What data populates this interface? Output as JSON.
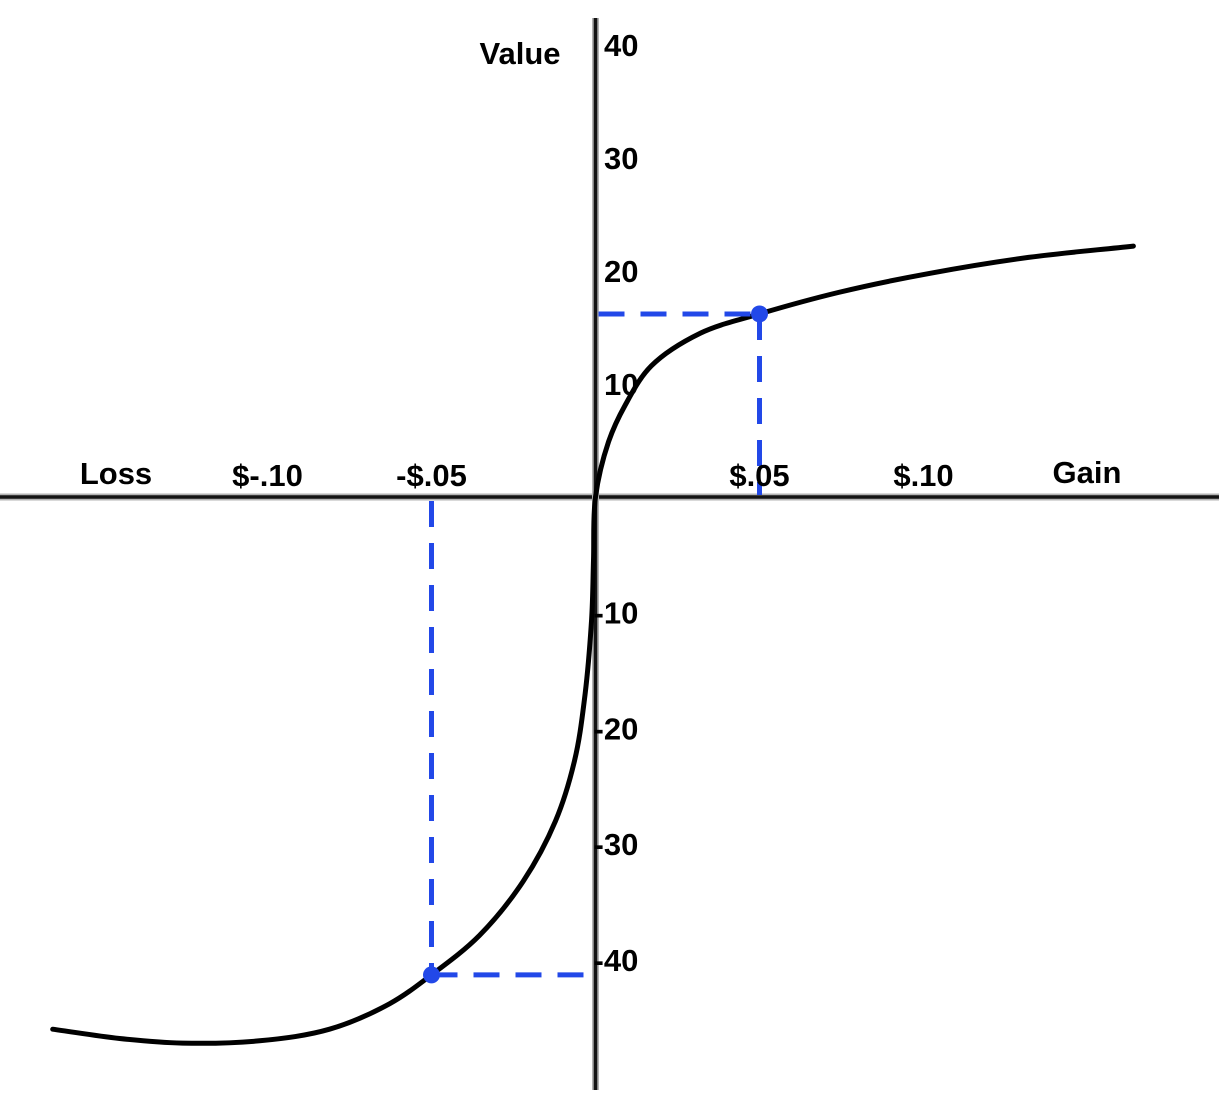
{
  "page": {
    "background_color": "#ffffff"
  },
  "chart_data": {
    "type": "line",
    "title": "",
    "y_axis_label": "Value",
    "x_axis_left_label": "Loss",
    "x_axis_right_label": "Gain",
    "x_tick_labels": [
      "$-.10",
      "-$.05",
      "$.05",
      "$.10"
    ],
    "x_tick_values": [
      -0.1,
      -0.05,
      0.05,
      0.1
    ],
    "y_tick_values": [
      40,
      30,
      20,
      10,
      -10,
      -20,
      -30,
      -40
    ],
    "x_range_dollars": [
      -0.17,
      0.175
    ],
    "y_range": [
      -50,
      42
    ],
    "grid": false,
    "legend": false,
    "axis_color": "#141414",
    "series": [
      {
        "name": "value-function-curve",
        "color": "#000000",
        "points_dollars_value": [
          [
            -0.1655,
            -46.0
          ],
          [
            -0.1451,
            -46.8
          ],
          [
            -0.1259,
            -47.2
          ],
          [
            -0.1024,
            -47.0
          ],
          [
            -0.0811,
            -46.0
          ],
          [
            -0.0628,
            -43.8
          ],
          [
            -0.05,
            -41.3
          ],
          [
            -0.0354,
            -37.9
          ],
          [
            -0.022,
            -33.2
          ],
          [
            -0.0122,
            -28.0
          ],
          [
            -0.0064,
            -22.8
          ],
          [
            -0.0034,
            -17.6
          ],
          [
            -0.0012,
            -10.6
          ],
          [
            -0.0006,
            -5.5
          ],
          [
            0,
            0
          ],
          [
            0.004,
            4.9
          ],
          [
            0.009,
            8.1
          ],
          [
            0.017,
            11.6
          ],
          [
            0.032,
            14.5
          ],
          [
            0.05,
            16.2
          ],
          [
            0.074,
            18.1
          ],
          [
            0.102,
            19.8
          ],
          [
            0.132,
            21.2
          ],
          [
            0.164,
            22.2
          ]
        ]
      }
    ],
    "annotations": {
      "color": "#2248e8",
      "style": "dashed guide lines from each marked point to both axes",
      "points": [
        {
          "name": "gain-point",
          "x_dollars": 0.05,
          "value": 16.2,
          "x_label": "$.05"
        },
        {
          "name": "loss-point",
          "x_dollars": -0.05,
          "value": -41.3,
          "x_label": "-$.05"
        }
      ]
    }
  }
}
